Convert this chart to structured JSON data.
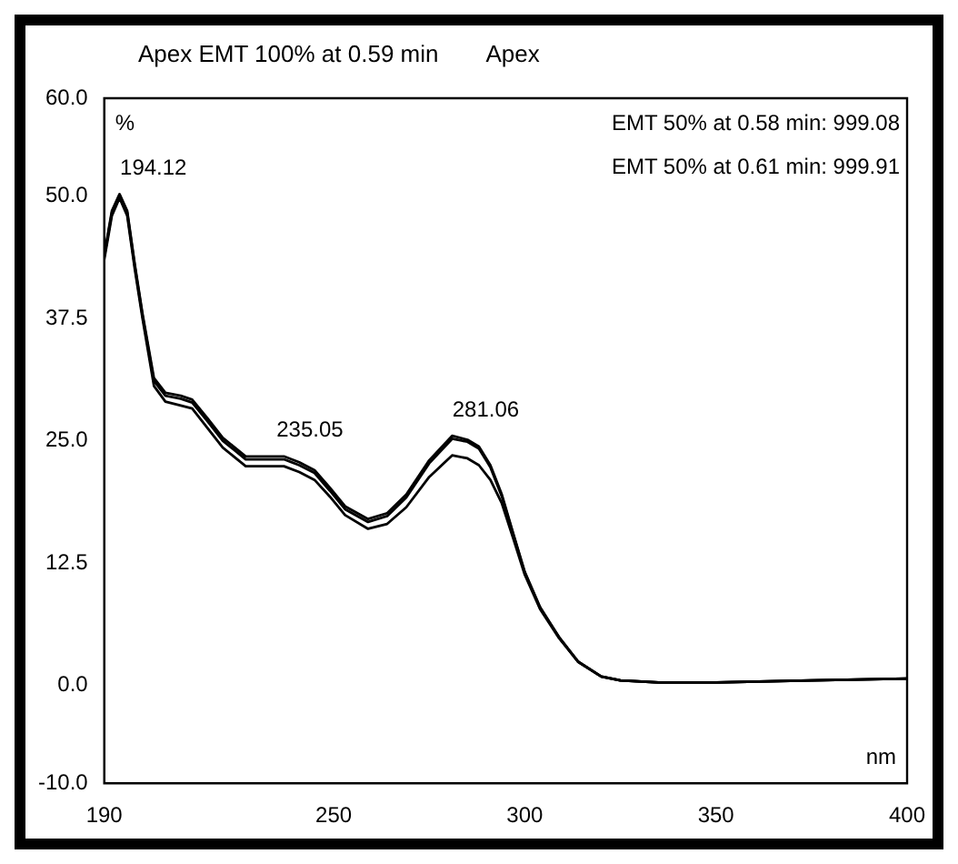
{
  "chart_data": {
    "type": "line",
    "title": "Apex EMT 100% at 0.59 min",
    "subtitle": "Apex",
    "xlabel": "nm",
    "ylabel": "%",
    "x": [
      190,
      192,
      194,
      196,
      198,
      200,
      203,
      206,
      210,
      213,
      217,
      221,
      227,
      232,
      237,
      241,
      245,
      249,
      253,
      259,
      264,
      269,
      275,
      281,
      285,
      288,
      291,
      294,
      297,
      300,
      304,
      309,
      314,
      320,
      325,
      335,
      350,
      375,
      400
    ],
    "series": [
      {
        "color": "#000000",
        "values": [
          44,
          48.5,
          50.2,
          48.5,
          43,
          38,
          31.4,
          29.9,
          29.6,
          29.2,
          27.3,
          25.3,
          23.4,
          23.4,
          23.4,
          22.8,
          22,
          20.2,
          18.3,
          17,
          17.6,
          19.5,
          23,
          25.5,
          25.1,
          24.4,
          22.5,
          19.5,
          15.5,
          11.6,
          8,
          4.9,
          2.4,
          0.9,
          0.5,
          0.3,
          0.3,
          0.5,
          0.7
        ]
      },
      {
        "color": "#000000",
        "values": [
          43.8,
          48.3,
          50,
          48.3,
          42.8,
          37.8,
          31.1,
          29.6,
          29.3,
          28.9,
          27,
          25,
          23.1,
          23.1,
          23.1,
          22.5,
          21.7,
          19.9,
          18,
          16.7,
          17.3,
          19.2,
          22.7,
          25.2,
          24.9,
          24.2,
          22.3,
          19.3,
          15.4,
          11.5,
          7.9,
          4.9,
          2.4,
          0.9,
          0.5,
          0.3,
          0.3,
          0.5,
          0.7
        ]
      },
      {
        "color": "#000000",
        "values": [
          43.5,
          48,
          49.8,
          48,
          42.5,
          37.5,
          30.6,
          29,
          28.6,
          28.3,
          26.3,
          24.3,
          22.4,
          22.4,
          22.4,
          21.8,
          21,
          19.3,
          17.4,
          16,
          16.5,
          18.2,
          21.3,
          23.5,
          23.2,
          22.5,
          21,
          18.6,
          15,
          11.3,
          7.8,
          4.8,
          2.4,
          0.9,
          0.5,
          0.3,
          0.3,
          0.5,
          0.7
        ]
      }
    ],
    "xlim": [
      190,
      400
    ],
    "xticks": [
      190,
      250,
      300,
      350,
      400
    ],
    "ylim": [
      -10,
      60
    ],
    "yticks": [
      {
        "value": -10,
        "label": "-10.0"
      },
      {
        "value": 0,
        "label": "0.0"
      },
      {
        "value": 12.5,
        "label": "12.5"
      },
      {
        "value": 25,
        "label": "25.0"
      },
      {
        "value": 37.5,
        "label": "37.5"
      },
      {
        "value": 50,
        "label": "50.0"
      },
      {
        "value": 60,
        "label": "60.0"
      }
    ],
    "annotations": [
      "EMT 50% at 0.58 min: 999.08",
      "EMT 50% at 0.61 min: 999.91",
      {
        "text": "194.12",
        "x": 194.12,
        "y": 50.2
      },
      {
        "text": "235.05",
        "x": 235.05,
        "y": 23.4
      },
      {
        "text": "281.06",
        "x": 281.06,
        "y": 25.5
      }
    ],
    "grid": false,
    "legend": false,
    "marker": "none",
    "line_style": "solid"
  }
}
